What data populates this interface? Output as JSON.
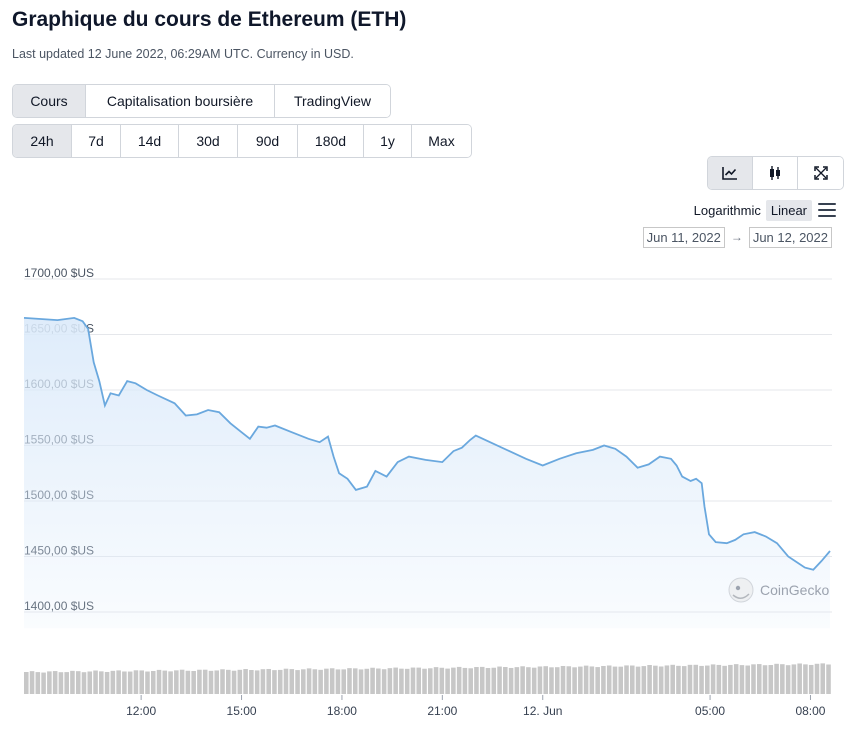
{
  "page": {
    "title": "Graphique du cours de Ethereum (ETH)",
    "subtitle": "Last updated 12 June 2022, 06:29AM UTC. Currency in USD."
  },
  "tabs": [
    {
      "label": "Cours",
      "active": true
    },
    {
      "label": "Capitalisation boursière",
      "active": false
    },
    {
      "label": "TradingView",
      "active": false
    }
  ],
  "ranges": [
    {
      "label": "24h",
      "active": true
    },
    {
      "label": "7d",
      "active": false
    },
    {
      "label": "14d",
      "active": false
    },
    {
      "label": "30d",
      "active": false
    },
    {
      "label": "90d",
      "active": false
    },
    {
      "label": "180d",
      "active": false
    },
    {
      "label": "1y",
      "active": false
    },
    {
      "label": "Max",
      "active": false
    }
  ],
  "view_buttons": [
    {
      "icon": "line-chart-icon",
      "active": true
    },
    {
      "icon": "candlestick-icon",
      "active": false
    },
    {
      "icon": "fullscreen-icon",
      "active": false
    }
  ],
  "scale": {
    "logarithmic": "Logarithmic",
    "linear": "Linear",
    "active": "linear"
  },
  "date_range": {
    "from": "Jun 11, 2022",
    "to": "Jun 12, 2022",
    "arrow": "→"
  },
  "watermark": "CoinGecko",
  "colors": {
    "line": "#6aa8de",
    "area_top": "#dbeafa",
    "volume": "#c7c7c7",
    "active_button": "#e5e7eb"
  },
  "chart_data": {
    "type": "area",
    "title": "",
    "xlabel": "",
    "ylabel": "",
    "currency_suffix": " $US",
    "ylim": [
      1390,
      1700
    ],
    "yticks": [
      1400,
      1450,
      1500,
      1550,
      1600,
      1650,
      1700
    ],
    "ytick_labels": [
      "1400,00 $US",
      "1450,00 $US",
      "1500,00 $US",
      "1550,00 $US",
      "1600,00 $US",
      "1650,00 $US",
      "1700,00 $US"
    ],
    "x_range": [
      "2022-06-11T08:30",
      "2022-06-12T08:35"
    ],
    "xticks": [
      {
        "time": "2022-06-11T12:00",
        "label": "12:00"
      },
      {
        "time": "2022-06-11T15:00",
        "label": "15:00"
      },
      {
        "time": "2022-06-11T18:00",
        "label": "18:00"
      },
      {
        "time": "2022-06-11T21:00",
        "label": "21:00"
      },
      {
        "time": "2022-06-12T00:00",
        "label": "12. Jun"
      },
      {
        "time": "2022-06-12T05:00",
        "label": "05:00"
      },
      {
        "time": "2022-06-12T08:00",
        "label": "08:00"
      }
    ],
    "grid": "horizontal",
    "series": [
      {
        "points": [
          [
            "2022-06-11T08:30",
            1665
          ],
          [
            "2022-06-11T09:00",
            1664
          ],
          [
            "2022-06-11T09:30",
            1663
          ],
          [
            "2022-06-11T10:00",
            1665
          ],
          [
            "2022-06-11T10:15",
            1662
          ],
          [
            "2022-06-11T10:25",
            1655
          ],
          [
            "2022-06-11T10:35",
            1625
          ],
          [
            "2022-06-11T10:45",
            1608
          ],
          [
            "2022-06-11T10:55",
            1586
          ],
          [
            "2022-06-11T11:05",
            1597
          ],
          [
            "2022-06-11T11:20",
            1595
          ],
          [
            "2022-06-11T11:35",
            1608
          ],
          [
            "2022-06-11T11:50",
            1606
          ],
          [
            "2022-06-11T12:10",
            1600
          ],
          [
            "2022-06-11T12:30",
            1595
          ],
          [
            "2022-06-11T13:00",
            1588
          ],
          [
            "2022-06-11T13:20",
            1577
          ],
          [
            "2022-06-11T13:40",
            1578
          ],
          [
            "2022-06-11T14:00",
            1582
          ],
          [
            "2022-06-11T14:20",
            1580
          ],
          [
            "2022-06-11T14:40",
            1570
          ],
          [
            "2022-06-11T15:00",
            1562
          ],
          [
            "2022-06-11T15:15",
            1556
          ],
          [
            "2022-06-11T15:30",
            1567
          ],
          [
            "2022-06-11T15:45",
            1566
          ],
          [
            "2022-06-11T16:00",
            1568
          ],
          [
            "2022-06-11T16:30",
            1562
          ],
          [
            "2022-06-11T17:00",
            1556
          ],
          [
            "2022-06-11T17:20",
            1553
          ],
          [
            "2022-06-11T17:35",
            1558
          ],
          [
            "2022-06-11T17:45",
            1540
          ],
          [
            "2022-06-11T17:55",
            1525
          ],
          [
            "2022-06-11T18:10",
            1520
          ],
          [
            "2022-06-11T18:25",
            1510
          ],
          [
            "2022-06-11T18:45",
            1513
          ],
          [
            "2022-06-11T19:00",
            1527
          ],
          [
            "2022-06-11T19:20",
            1522
          ],
          [
            "2022-06-11T19:40",
            1535
          ],
          [
            "2022-06-11T20:00",
            1540
          ],
          [
            "2022-06-11T20:30",
            1537
          ],
          [
            "2022-06-11T21:00",
            1535
          ],
          [
            "2022-06-11T21:20",
            1545
          ],
          [
            "2022-06-11T21:35",
            1548
          ],
          [
            "2022-06-11T21:50",
            1555
          ],
          [
            "2022-06-11T22:00",
            1559
          ],
          [
            "2022-06-11T22:30",
            1552
          ],
          [
            "2022-06-11T23:00",
            1545
          ],
          [
            "2022-06-11T23:30",
            1538
          ],
          [
            "2022-06-12T00:00",
            1532
          ],
          [
            "2022-06-12T00:30",
            1538
          ],
          [
            "2022-06-12T01:00",
            1543
          ],
          [
            "2022-06-12T01:30",
            1546
          ],
          [
            "2022-06-12T01:50",
            1550
          ],
          [
            "2022-06-12T02:10",
            1547
          ],
          [
            "2022-06-12T02:30",
            1540
          ],
          [
            "2022-06-12T02:50",
            1530
          ],
          [
            "2022-06-12T03:10",
            1533
          ],
          [
            "2022-06-12T03:30",
            1540
          ],
          [
            "2022-06-12T03:50",
            1538
          ],
          [
            "2022-06-12T04:00",
            1532
          ],
          [
            "2022-06-12T04:10",
            1522
          ],
          [
            "2022-06-12T04:25",
            1518
          ],
          [
            "2022-06-12T04:35",
            1520
          ],
          [
            "2022-06-12T04:45",
            1516
          ],
          [
            "2022-06-12T04:50",
            1495
          ],
          [
            "2022-06-12T04:58",
            1470
          ],
          [
            "2022-06-12T05:10",
            1463
          ],
          [
            "2022-06-12T05:30",
            1462
          ],
          [
            "2022-06-12T05:45",
            1465
          ],
          [
            "2022-06-12T06:00",
            1470
          ],
          [
            "2022-06-12T06:20",
            1472
          ],
          [
            "2022-06-12T06:40",
            1468
          ],
          [
            "2022-06-12T07:00",
            1462
          ],
          [
            "2022-06-12T07:20",
            1450
          ],
          [
            "2022-06-12T07:35",
            1445
          ],
          [
            "2022-06-12T07:50",
            1440
          ],
          [
            "2022-06-12T08:05",
            1438
          ],
          [
            "2022-06-12T08:20",
            1446
          ],
          [
            "2022-06-12T08:35",
            1455
          ]
        ]
      }
    ],
    "volume": {
      "bars": 140,
      "relative_heights": [
        0.55,
        0.75
      ]
    }
  }
}
